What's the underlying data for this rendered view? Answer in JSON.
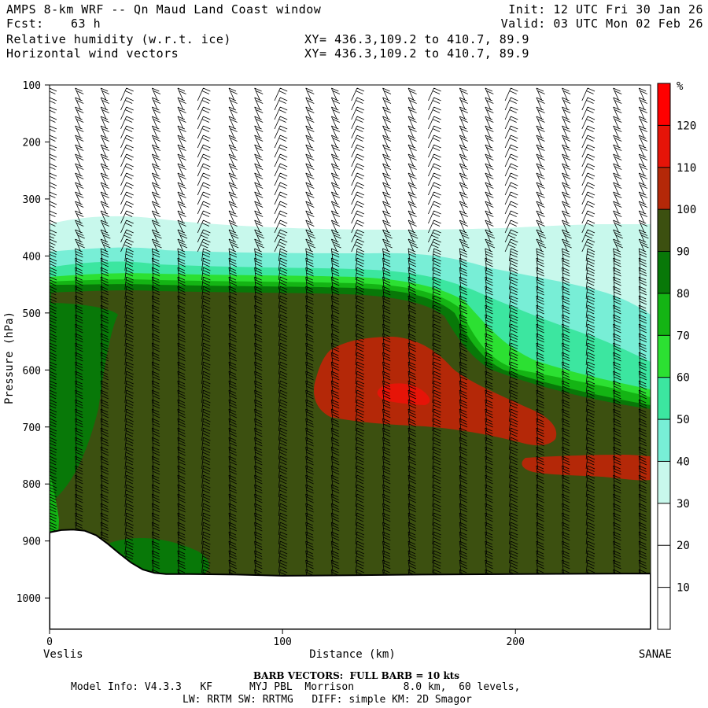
{
  "header": {
    "title": "AMPS 8-km WRF -- Qn Maud Land Coast window",
    "fcst_label": "Fcst:",
    "fcst_value": "63 h",
    "field1": "Relative humidity (w.r.t. ice)",
    "field2": "Horizontal wind vectors",
    "init": "Init: 12 UTC Fri 30 Jan 26",
    "valid": "Valid: 03 UTC Mon 02 Feb 26",
    "xy1": "XY= 436.3,109.2 to 410.7, 89.9",
    "xy2": "XY= 436.3,109.2 to 410.7, 89.9"
  },
  "footer": {
    "barb_note": "BARB VECTORS:  FULL BARB = 10 kts",
    "model_info": "Model Info: V4.3.3   KF      MYJ PBL  Morrison        8.0 km,  60 levels,",
    "physics": "LW: RRTM SW: RRTMG   DIFF: simple KM: 2D Smagor"
  },
  "chart_data": {
    "type": "cross-section",
    "ylabel": "Pressure (hPa)",
    "xlabel": "Distance (km)",
    "x_left_label": "Veslis",
    "x_right_label": "SANAE",
    "y_ticks": [
      100,
      200,
      300,
      400,
      500,
      600,
      700,
      800,
      900,
      1000
    ],
    "x_ticks": [
      0,
      100,
      200
    ],
    "xlim": [
      0,
      258
    ],
    "ylim": [
      100,
      1055
    ],
    "colorbar": {
      "unit": "%",
      "labels": [
        10,
        20,
        30,
        40,
        50,
        60,
        70,
        80,
        90,
        100,
        110,
        120
      ],
      "colors": [
        "#ffffff",
        "#ffffff",
        "#ffffff",
        "#c8f8ec",
        "#78eed6",
        "#3ce6a0",
        "#2ce032",
        "#14b414",
        "#087808",
        "#3c5010",
        "#b42808",
        "#e61408",
        "#ff0000"
      ]
    },
    "colors": {
      "band_30_40": "#c8f8ec",
      "band_40_50": "#78eed6",
      "band_50_60": "#3ce6a0",
      "band_60_70": "#2ce032",
      "band_70_80": "#14b414",
      "band_80_90": "#087808",
      "band_90_100": "#087808",
      "band_100_110": "#3c5010",
      "band_110_120": "#b42808",
      "band_120plus": "#e61408",
      "terrain": "#ffffff"
    },
    "terrain_profile": {
      "distance_km": [
        0,
        5,
        10,
        15,
        20,
        25,
        30,
        35,
        40,
        45,
        50,
        60,
        80,
        100,
        130,
        160,
        200,
        258
      ],
      "pressure_hpa": [
        885,
        881,
        880,
        882,
        890,
        905,
        922,
        938,
        950,
        956,
        958,
        958,
        959,
        961,
        960,
        959,
        958,
        957
      ]
    }
  }
}
